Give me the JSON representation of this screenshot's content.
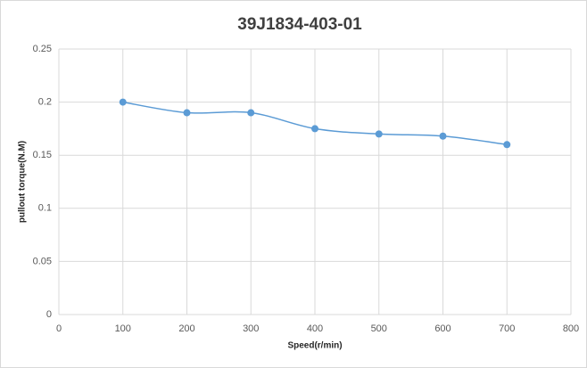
{
  "chart_data": {
    "type": "line",
    "title": "39J1834-403-01",
    "x_label": "Speed(r/min)",
    "y_label": "pullout torque(N.M)",
    "x": [
      100,
      200,
      300,
      400,
      500,
      600,
      700
    ],
    "values": [
      0.2,
      0.19,
      0.19,
      0.175,
      0.17,
      0.168,
      0.16
    ],
    "color": "#5b9bd5",
    "smooth": true,
    "grid": true,
    "xlim": [
      0,
      800
    ],
    "xticks": [
      0,
      100,
      200,
      300,
      400,
      500,
      600,
      700,
      800
    ],
    "ylim": [
      0,
      0.25
    ],
    "yticks": [
      0,
      0.05,
      0.1,
      0.15,
      0.2,
      0.25
    ]
  }
}
